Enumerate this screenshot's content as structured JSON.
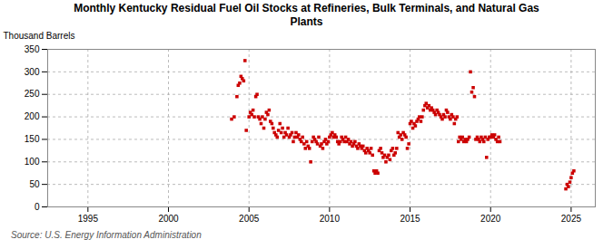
{
  "chart_data": {
    "type": "scatter",
    "title": "Monthly Kentucky Residual Fuel Oil Stocks at Refineries, Bulk Terminals, and Natural Gas\nPlants",
    "ylabel": "Thousand Barrels",
    "source": "Source: U.S. Energy Information Administration",
    "color": "#cc0000",
    "marker": "square",
    "grid": true,
    "xlim": [
      1992.5,
      2026.5
    ],
    "ylim": [
      0,
      350
    ],
    "xticks": [
      1995,
      2000,
      2005,
      2010,
      2015,
      2020,
      2025
    ],
    "yticks": [
      0,
      50,
      100,
      150,
      200,
      250,
      300,
      350
    ],
    "x": [
      2003.92,
      2004.08,
      2004.25,
      2004.33,
      2004.42,
      2004.5,
      2004.58,
      2004.67,
      2004.75,
      2004.83,
      2005.0,
      2005.08,
      2005.17,
      2005.25,
      2005.33,
      2005.42,
      2005.5,
      2005.58,
      2005.67,
      2005.75,
      2005.83,
      2005.92,
      2006.0,
      2006.08,
      2006.17,
      2006.25,
      2006.33,
      2006.42,
      2006.5,
      2006.58,
      2006.67,
      2006.75,
      2006.83,
      2006.92,
      2007.0,
      2007.08,
      2007.17,
      2007.25,
      2007.33,
      2007.42,
      2007.5,
      2007.58,
      2007.67,
      2007.75,
      2007.83,
      2007.92,
      2008.0,
      2008.08,
      2008.17,
      2008.25,
      2008.33,
      2008.42,
      2008.5,
      2008.58,
      2008.67,
      2008.75,
      2008.83,
      2008.92,
      2009.0,
      2009.08,
      2009.17,
      2009.25,
      2009.33,
      2009.42,
      2009.5,
      2009.58,
      2009.67,
      2009.75,
      2009.83,
      2009.92,
      2010.0,
      2010.08,
      2010.17,
      2010.25,
      2010.33,
      2010.42,
      2010.5,
      2010.58,
      2010.67,
      2010.75,
      2010.83,
      2010.92,
      2011.0,
      2011.08,
      2011.17,
      2011.25,
      2011.33,
      2011.42,
      2011.5,
      2011.58,
      2011.67,
      2011.75,
      2011.83,
      2011.92,
      2012.0,
      2012.08,
      2012.17,
      2012.25,
      2012.33,
      2012.42,
      2012.5,
      2012.58,
      2012.67,
      2012.75,
      2012.83,
      2012.92,
      2013.0,
      2013.08,
      2013.17,
      2013.25,
      2013.33,
      2013.42,
      2013.5,
      2013.58,
      2013.67,
      2013.75,
      2013.83,
      2013.92,
      2014.0,
      2014.08,
      2014.17,
      2014.25,
      2014.33,
      2014.42,
      2014.5,
      2014.58,
      2014.67,
      2014.75,
      2014.83,
      2014.92,
      2015.0,
      2015.08,
      2015.17,
      2015.25,
      2015.33,
      2015.42,
      2015.5,
      2015.58,
      2015.67,
      2015.75,
      2015.83,
      2015.92,
      2016.0,
      2016.08,
      2016.17,
      2016.25,
      2016.33,
      2016.42,
      2016.5,
      2016.58,
      2016.67,
      2016.75,
      2016.83,
      2016.92,
      2017.0,
      2017.08,
      2017.17,
      2017.25,
      2017.33,
      2017.42,
      2017.5,
      2017.58,
      2017.67,
      2017.75,
      2017.83,
      2017.92,
      2018.0,
      2018.08,
      2018.17,
      2018.25,
      2018.33,
      2018.42,
      2018.5,
      2018.58,
      2018.67,
      2018.75,
      2018.83,
      2018.92,
      2019.0,
      2019.08,
      2019.17,
      2019.25,
      2019.33,
      2019.42,
      2019.5,
      2019.58,
      2019.67,
      2019.75,
      2019.83,
      2019.92,
      2020.0,
      2020.08,
      2020.17,
      2020.25,
      2020.33,
      2020.42,
      2020.5,
      2020.58,
      2024.67,
      2024.75,
      2024.83,
      2024.92,
      2025.0,
      2025.08,
      2025.17
    ],
    "values": [
      195,
      200,
      245,
      270,
      275,
      290,
      285,
      280,
      325,
      170,
      200,
      210,
      205,
      215,
      200,
      245,
      250,
      200,
      195,
      185,
      200,
      175,
      195,
      210,
      205,
      215,
      190,
      185,
      175,
      165,
      160,
      155,
      170,
      185,
      165,
      175,
      155,
      165,
      160,
      175,
      155,
      160,
      165,
      145,
      155,
      165,
      155,
      160,
      150,
      145,
      155,
      140,
      130,
      145,
      135,
      130,
      100,
      145,
      155,
      150,
      145,
      140,
      155,
      135,
      140,
      130,
      145,
      150,
      140,
      145,
      155,
      160,
      165,
      155,
      160,
      155,
      145,
      140,
      145,
      155,
      150,
      145,
      155,
      145,
      150,
      140,
      145,
      135,
      140,
      145,
      135,
      130,
      140,
      135,
      130,
      135,
      125,
      120,
      130,
      125,
      120,
      130,
      115,
      80,
      75,
      80,
      75,
      125,
      130,
      120,
      110,
      115,
      100,
      110,
      115,
      105,
      125,
      130,
      115,
      120,
      130,
      165,
      155,
      160,
      150,
      165,
      160,
      155,
      130,
      140,
      185,
      190,
      175,
      185,
      180,
      190,
      195,
      200,
      190,
      200,
      215,
      225,
      230,
      220,
      225,
      215,
      220,
      215,
      210,
      205,
      215,
      210,
      205,
      200,
      195,
      205,
      200,
      215,
      210,
      200,
      195,
      205,
      200,
      185,
      195,
      200,
      145,
      155,
      150,
      155,
      145,
      150,
      145,
      150,
      155,
      300,
      255,
      265,
      245,
      150,
      155,
      150,
      145,
      155,
      150,
      145,
      155,
      110,
      150,
      155,
      155,
      160,
      155,
      160,
      150,
      145,
      155,
      145,
      40,
      50,
      45,
      55,
      65,
      75,
      80
    ]
  }
}
